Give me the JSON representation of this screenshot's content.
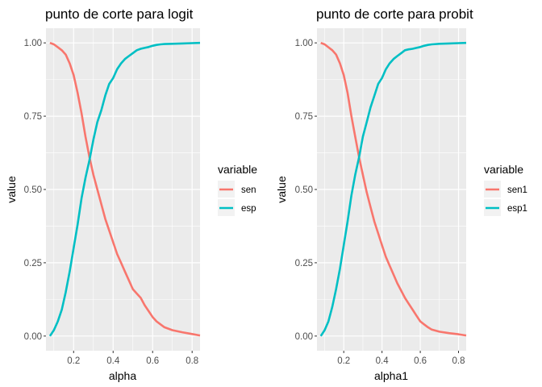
{
  "chart_data": [
    {
      "type": "line",
      "title": "punto de corte para logit",
      "xlabel": "alpha",
      "ylabel": "value",
      "xlim": [
        0.06,
        0.84
      ],
      "ylim": [
        -0.05,
        1.05
      ],
      "xticks": [
        0.2,
        0.4,
        0.6,
        0.8
      ],
      "xtick_labels": [
        "0.2",
        "0.4",
        "0.6",
        "0.8"
      ],
      "yticks": [
        0,
        0.25,
        0.5,
        0.75,
        1
      ],
      "ytick_labels": [
        "0.00",
        "0.25",
        "0.50",
        "0.75",
        "1.00"
      ],
      "grid": true,
      "legend": {
        "title": "variable",
        "position": "right"
      },
      "series": [
        {
          "name": "sen",
          "color": "#F8766D",
          "x": [
            0.08,
            0.1,
            0.12,
            0.14,
            0.16,
            0.18,
            0.2,
            0.22,
            0.24,
            0.26,
            0.28,
            0.3,
            0.32,
            0.34,
            0.36,
            0.38,
            0.4,
            0.42,
            0.44,
            0.46,
            0.48,
            0.5,
            0.52,
            0.54,
            0.56,
            0.58,
            0.6,
            0.62,
            0.64,
            0.66,
            0.7,
            0.75,
            0.8,
            0.84
          ],
          "values": [
            1.0,
            0.995,
            0.985,
            0.975,
            0.96,
            0.93,
            0.89,
            0.83,
            0.76,
            0.68,
            0.61,
            0.55,
            0.5,
            0.45,
            0.4,
            0.36,
            0.32,
            0.28,
            0.25,
            0.22,
            0.19,
            0.16,
            0.145,
            0.13,
            0.105,
            0.085,
            0.065,
            0.05,
            0.04,
            0.03,
            0.02,
            0.013,
            0.007,
            0.002
          ]
        },
        {
          "name": "esp",
          "color": "#00BFC4",
          "x": [
            0.08,
            0.1,
            0.12,
            0.14,
            0.16,
            0.18,
            0.2,
            0.22,
            0.24,
            0.26,
            0.28,
            0.3,
            0.32,
            0.34,
            0.36,
            0.38,
            0.4,
            0.42,
            0.44,
            0.46,
            0.48,
            0.5,
            0.52,
            0.54,
            0.56,
            0.58,
            0.6,
            0.62,
            0.64,
            0.66,
            0.7,
            0.75,
            0.8,
            0.84
          ],
          "values": [
            0.0,
            0.02,
            0.05,
            0.09,
            0.15,
            0.22,
            0.3,
            0.38,
            0.47,
            0.54,
            0.6,
            0.67,
            0.73,
            0.77,
            0.82,
            0.86,
            0.88,
            0.91,
            0.93,
            0.945,
            0.955,
            0.965,
            0.975,
            0.98,
            0.983,
            0.986,
            0.99,
            0.993,
            0.995,
            0.996,
            0.997,
            0.998,
            0.999,
            1.0
          ]
        }
      ]
    },
    {
      "type": "line",
      "title": "punto de corte para probit",
      "xlabel": "alpha1",
      "ylabel": "value",
      "xlim": [
        0.06,
        0.84
      ],
      "ylim": [
        -0.05,
        1.05
      ],
      "xticks": [
        0.2,
        0.4,
        0.6,
        0.8
      ],
      "xtick_labels": [
        "0.2",
        "0.4",
        "0.6",
        "0.8"
      ],
      "yticks": [
        0,
        0.25,
        0.5,
        0.75,
        1
      ],
      "ytick_labels": [
        "0.00",
        "0.25",
        "0.50",
        "0.75",
        "1.00"
      ],
      "grid": true,
      "legend": {
        "title": "variable",
        "position": "right"
      },
      "series": [
        {
          "name": "sen1",
          "color": "#F8766D",
          "x": [
            0.08,
            0.1,
            0.12,
            0.14,
            0.16,
            0.18,
            0.2,
            0.22,
            0.24,
            0.26,
            0.28,
            0.3,
            0.32,
            0.34,
            0.36,
            0.38,
            0.4,
            0.42,
            0.44,
            0.46,
            0.48,
            0.5,
            0.52,
            0.54,
            0.56,
            0.58,
            0.6,
            0.62,
            0.64,
            0.66,
            0.7,
            0.75,
            0.8,
            0.84
          ],
          "values": [
            1.0,
            0.995,
            0.985,
            0.975,
            0.96,
            0.93,
            0.89,
            0.83,
            0.75,
            0.68,
            0.61,
            0.55,
            0.49,
            0.44,
            0.39,
            0.35,
            0.31,
            0.27,
            0.24,
            0.21,
            0.18,
            0.155,
            0.13,
            0.11,
            0.09,
            0.07,
            0.05,
            0.04,
            0.03,
            0.022,
            0.015,
            0.01,
            0.006,
            0.002
          ]
        },
        {
          "name": "esp1",
          "color": "#00BFC4",
          "x": [
            0.08,
            0.1,
            0.12,
            0.14,
            0.16,
            0.18,
            0.2,
            0.22,
            0.24,
            0.26,
            0.28,
            0.3,
            0.32,
            0.34,
            0.36,
            0.38,
            0.4,
            0.42,
            0.44,
            0.46,
            0.48,
            0.5,
            0.52,
            0.54,
            0.56,
            0.58,
            0.6,
            0.62,
            0.64,
            0.66,
            0.7,
            0.75,
            0.8,
            0.84
          ],
          "values": [
            0.0,
            0.02,
            0.05,
            0.1,
            0.16,
            0.23,
            0.31,
            0.39,
            0.48,
            0.55,
            0.61,
            0.68,
            0.73,
            0.78,
            0.82,
            0.86,
            0.88,
            0.91,
            0.93,
            0.945,
            0.955,
            0.965,
            0.975,
            0.978,
            0.98,
            0.983,
            0.986,
            0.99,
            0.993,
            0.995,
            0.997,
            0.998,
            0.999,
            1.0
          ]
        }
      ]
    }
  ]
}
